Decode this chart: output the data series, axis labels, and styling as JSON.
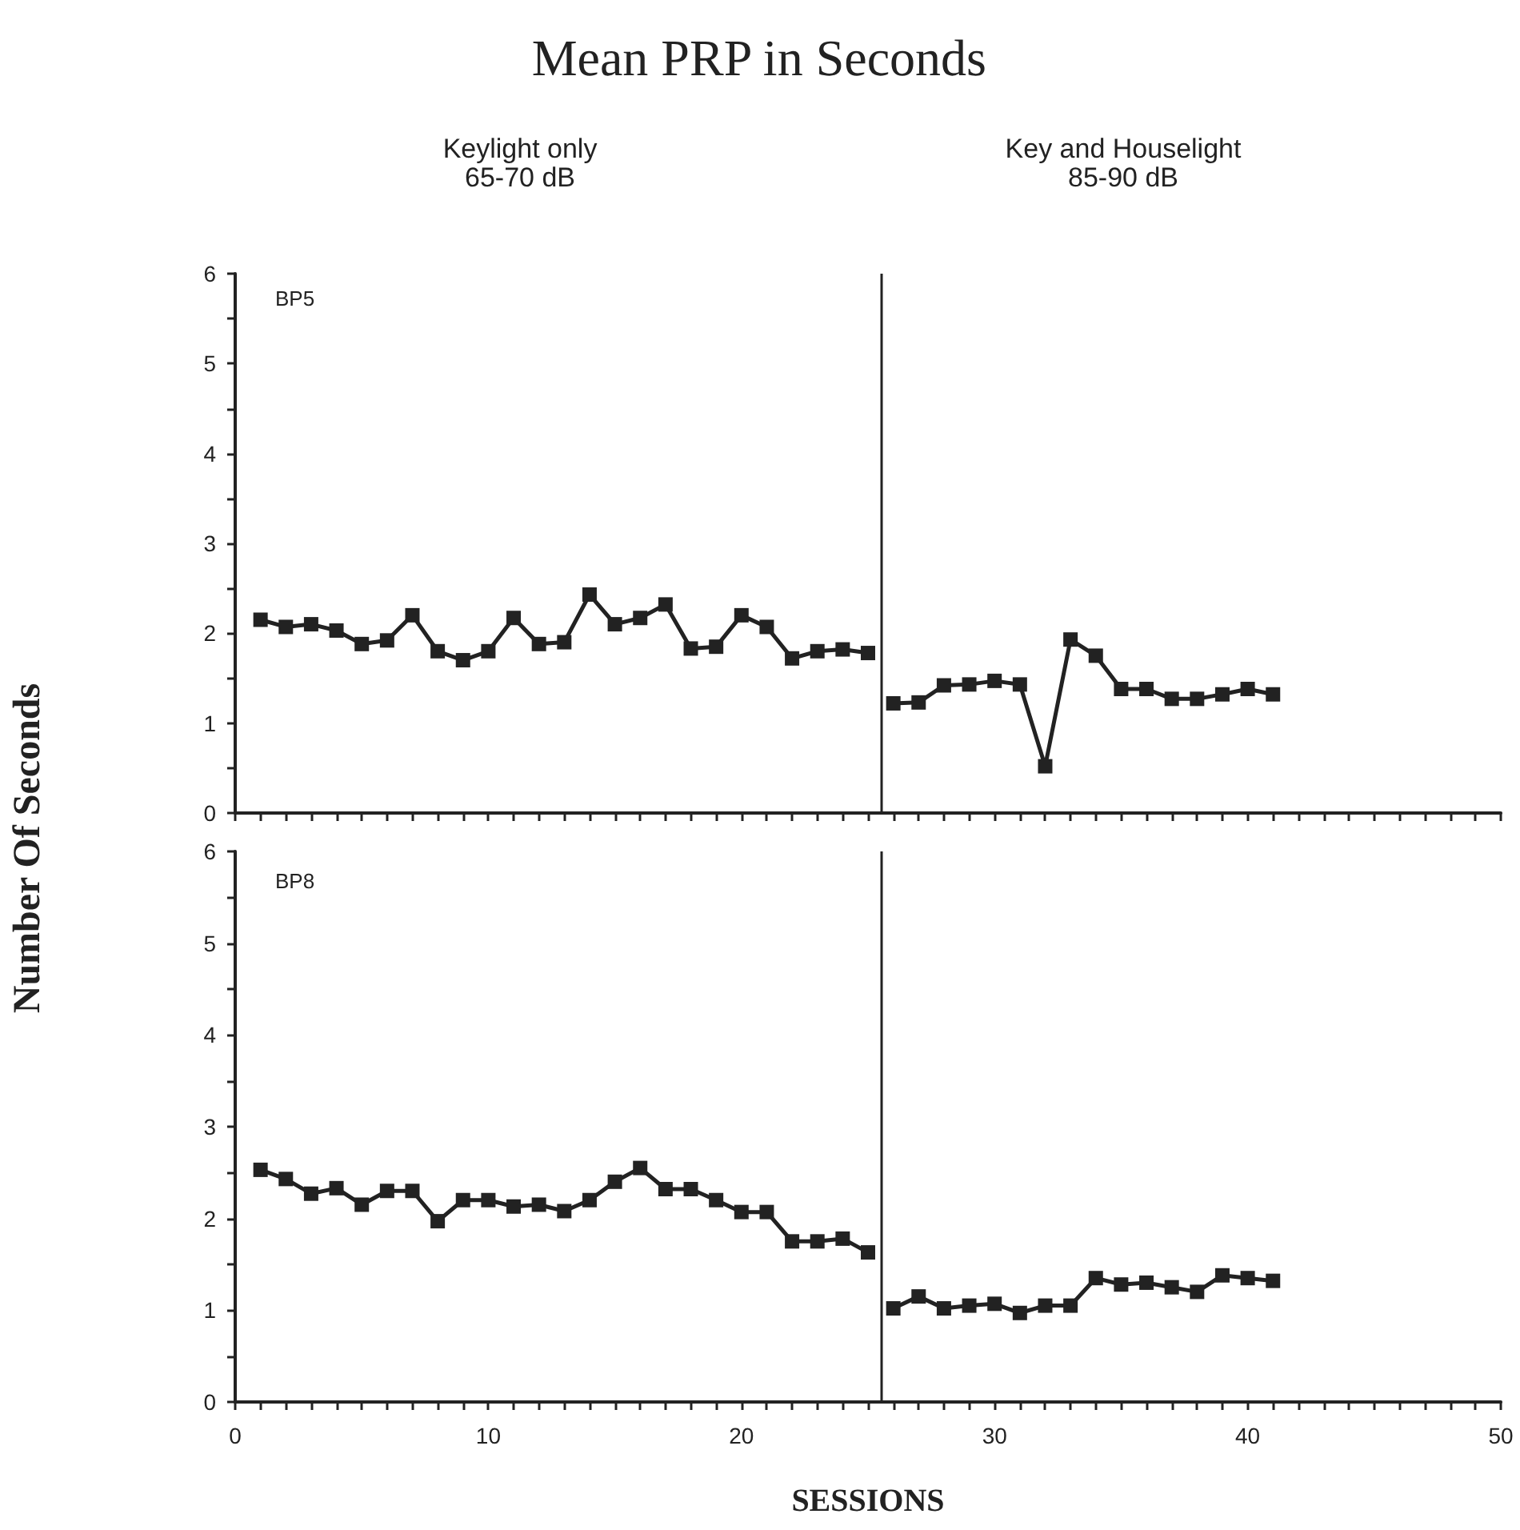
{
  "chart_data": [
    {
      "type": "line",
      "title": "Mean PRP in Seconds",
      "ylabel": "Number Of Seconds",
      "annotations": [
        "Keylight only\n65-70 dB",
        "Key and Houselight\n85-90 dB",
        "BP5"
      ],
      "xlim": [
        0,
        50
      ],
      "xticks": [
        0,
        10,
        20,
        30,
        40,
        50
      ],
      "ylim": [
        0,
        6
      ],
      "yticks": [
        0,
        1,
        2,
        3,
        4,
        5,
        6
      ],
      "tick_labels": "y",
      "marker": "square",
      "line_style": "solid",
      "grid": false,
      "ref_lines": [
        {
          "axis": "x",
          "value": 25.5,
          "color": "#222222"
        }
      ],
      "series": [
        {
          "color": "#222222",
          "x": [
            1,
            2,
            3,
            4,
            5,
            6,
            7,
            8,
            9,
            10,
            11,
            12,
            13,
            14,
            15,
            16,
            17,
            18,
            19,
            20,
            21,
            22,
            23,
            24,
            25
          ],
          "values": [
            2.15,
            2.07,
            2.1,
            2.03,
            1.88,
            1.92,
            2.2,
            1.8,
            1.7,
            1.8,
            2.17,
            1.88,
            1.9,
            2.43,
            2.1,
            2.17,
            2.32,
            1.83,
            1.85,
            2.2,
            2.07,
            1.72,
            1.8,
            1.82,
            1.78
          ]
        },
        {
          "color": "#222222",
          "x": [
            26,
            27,
            28,
            29,
            30,
            31,
            32,
            33,
            34,
            35,
            36,
            37,
            38,
            39,
            40,
            41
          ],
          "values": [
            1.22,
            1.23,
            1.42,
            1.43,
            1.47,
            1.43,
            0.52,
            1.93,
            1.75,
            1.38,
            1.38,
            1.27,
            1.27,
            1.32,
            1.38,
            1.32
          ]
        }
      ]
    },
    {
      "type": "line",
      "xlabel": "SESSIONS",
      "annotations": [
        "BP8"
      ],
      "xlim": [
        0,
        50
      ],
      "xticks": [
        0,
        10,
        20,
        30,
        40,
        50
      ],
      "ylim": [
        0,
        6
      ],
      "yticks": [
        0,
        1,
        2,
        3,
        4,
        5,
        6
      ],
      "marker": "square",
      "line_style": "solid",
      "grid": false,
      "ref_lines": [
        {
          "axis": "x",
          "value": 25.5,
          "color": "#222222"
        }
      ],
      "series": [
        {
          "color": "#222222",
          "x": [
            1,
            2,
            3,
            4,
            5,
            6,
            7,
            8,
            9,
            10,
            11,
            12,
            13,
            14,
            15,
            16,
            17,
            18,
            19,
            20,
            21,
            22,
            23,
            24,
            25
          ],
          "values": [
            2.53,
            2.43,
            2.27,
            2.33,
            2.15,
            2.3,
            2.3,
            1.97,
            2.2,
            2.2,
            2.13,
            2.15,
            2.08,
            2.2,
            2.4,
            2.55,
            2.32,
            2.32,
            2.2,
            2.07,
            2.07,
            1.75,
            1.75,
            1.78,
            1.63
          ]
        },
        {
          "color": "#222222",
          "x": [
            26,
            27,
            28,
            29,
            30,
            31,
            32,
            33,
            34,
            35,
            36,
            37,
            38,
            39,
            40,
            41
          ],
          "values": [
            1.02,
            1.15,
            1.02,
            1.05,
            1.07,
            0.97,
            1.05,
            1.05,
            1.35,
            1.28,
            1.3,
            1.25,
            1.2,
            1.38,
            1.35,
            1.32
          ]
        }
      ]
    }
  ]
}
